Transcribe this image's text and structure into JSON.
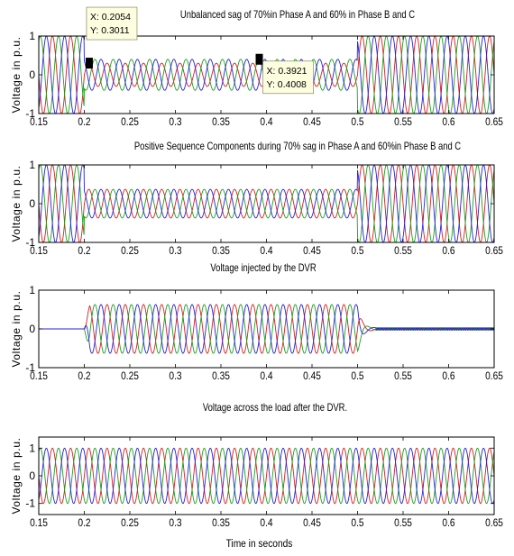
{
  "chart_data": [
    {
      "type": "line",
      "title": "Unbalanced sag of 70%in Phase A and 60% in Phase B and C",
      "ylabel": "Voltage in p.u.",
      "xlabel": "",
      "xlim": [
        0.15,
        0.65
      ],
      "ylim": [
        -1,
        1
      ],
      "xticks": [
        "0.15",
        "0.2",
        "0.25",
        "0.3",
        "0.35",
        "0.4",
        "0.45",
        "0.5",
        "0.55",
        "0.6",
        "0.65"
      ],
      "yticks": [
        "-1",
        "0",
        "1"
      ],
      "frequency_hz": 50,
      "sag_start": 0.2,
      "sag_end": 0.5,
      "series": [
        {
          "color": "#d62020",
          "phase_deg": 0,
          "amplitude_normal": 1.0,
          "amplitude_sag": 0.3
        },
        {
          "color": "#1f9e1f",
          "phase_deg": -120,
          "amplitude_normal": 1.0,
          "amplitude_sag": 0.4
        },
        {
          "color": "#2323d8",
          "phase_deg": 120,
          "amplitude_normal": 1.0,
          "amplitude_sag": 0.4
        }
      ],
      "datatips": [
        {
          "x": 0.2054,
          "y": 0.3011,
          "x_label": "X: 0.2054",
          "y_label": "Y: 0.3011"
        },
        {
          "x": 0.3921,
          "y": 0.4008,
          "x_label": "X: 0.3921",
          "y_label": "Y: 0.4008"
        }
      ]
    },
    {
      "type": "line",
      "title": "Positive Sequence Components during 70% sag in Phase A and 60%in Phase B and C",
      "ylabel": "Voltage in p.u.",
      "xlabel": "",
      "xlim": [
        0.15,
        0.65
      ],
      "ylim": [
        -1,
        1
      ],
      "xticks": [
        "0.15",
        "0.2",
        "0.25",
        "0.3",
        "0.35",
        "0.4",
        "0.45",
        "0.5",
        "0.55",
        "0.6",
        "0.65"
      ],
      "yticks": [
        "-1",
        "0",
        "1"
      ],
      "frequency_hz": 50,
      "sag_start": 0.2,
      "sag_end": 0.5,
      "series": [
        {
          "color": "#d62020",
          "phase_deg": 0,
          "amplitude_normal": 1.0,
          "amplitude_sag": 0.37
        },
        {
          "color": "#1f9e1f",
          "phase_deg": -120,
          "amplitude_normal": 1.0,
          "amplitude_sag": 0.37
        },
        {
          "color": "#2323d8",
          "phase_deg": 120,
          "amplitude_normal": 1.0,
          "amplitude_sag": 0.37
        }
      ]
    },
    {
      "type": "line",
      "title": "Voltage injected by the DVR",
      "ylabel": "Voltage in p.u.",
      "xlabel": "",
      "xlim": [
        0.15,
        0.65
      ],
      "ylim": [
        -1,
        1
      ],
      "xticks": [
        "0.15",
        "0.2",
        "0.25",
        "0.3",
        "0.35",
        "0.4",
        "0.45",
        "0.5",
        "0.55",
        "0.6",
        "0.65"
      ],
      "yticks": [
        "-1",
        "0",
        "1"
      ],
      "frequency_hz": 50,
      "sag_start": 0.2,
      "sag_end": 0.5,
      "series": [
        {
          "color": "#d62020",
          "phase_deg": 0,
          "amplitude_normal": 0.0,
          "amplitude_sag": 0.63,
          "residual_ripple": 0.03
        },
        {
          "color": "#1f9e1f",
          "phase_deg": -120,
          "amplitude_normal": 0.0,
          "amplitude_sag": 0.63,
          "residual_ripple": 0.03
        },
        {
          "color": "#2323d8",
          "phase_deg": 120,
          "amplitude_normal": 0.0,
          "amplitude_sag": 0.63,
          "residual_ripple": 0.03
        }
      ]
    },
    {
      "type": "line",
      "title": "Voltage across the load after the DVR.",
      "ylabel": "Voltage in p.u.",
      "xlabel": "Time in seconds",
      "xlim": [
        0.15,
        0.65
      ],
      "ylim": [
        -1.4,
        1.4
      ],
      "xticks": [
        "0.15",
        "0.2",
        "0.25",
        "0.3",
        "0.35",
        "0.4",
        "0.45",
        "0.5",
        "0.55",
        "0.6",
        "0.65"
      ],
      "yticks": [
        "-1",
        "0",
        "1"
      ],
      "frequency_hz": 50,
      "sag_start": 0.2,
      "sag_end": 0.5,
      "series": [
        {
          "color": "#d62020",
          "phase_deg": 0,
          "amplitude_normal": 1.0,
          "amplitude_sag": 1.0
        },
        {
          "color": "#1f9e1f",
          "phase_deg": -120,
          "amplitude_normal": 1.0,
          "amplitude_sag": 1.0
        },
        {
          "color": "#2323d8",
          "phase_deg": 120,
          "amplitude_normal": 1.0,
          "amplitude_sag": 1.0
        }
      ]
    }
  ]
}
